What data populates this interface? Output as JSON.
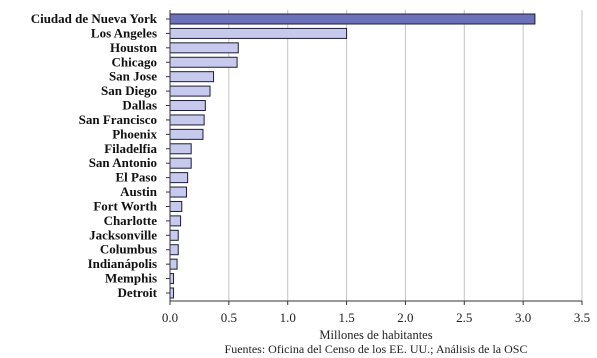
{
  "chart_data": {
    "type": "bar",
    "orientation": "horizontal",
    "categories": [
      "Ciudad de Nueva York",
      "Los Angeles",
      "Houston",
      "Chicago",
      "San Jose",
      "San Diego",
      "Dallas",
      "San Francisco",
      "Phoenix",
      "Filadelfia",
      "San Antonio",
      "El Paso",
      "Austin",
      "Fort Worth",
      "Charlotte",
      "Jacksonville",
      "Columbus",
      "Indianápolis",
      "Memphis",
      "Detroit"
    ],
    "values": [
      3.1,
      1.5,
      0.58,
      0.57,
      0.37,
      0.34,
      0.3,
      0.29,
      0.28,
      0.18,
      0.18,
      0.15,
      0.14,
      0.1,
      0.09,
      0.07,
      0.07,
      0.06,
      0.03,
      0.03
    ],
    "xlabel": "Millones de habitantes",
    "xlim": [
      0,
      3.5
    ],
    "xticks": [
      "0.0",
      "0.5",
      "1.0",
      "1.5",
      "2.0",
      "2.5",
      "3.0",
      "3.5"
    ],
    "grid": true,
    "source": "Fuentes: Oficina del Censo de los EE. UU.; Análisis de la OSC",
    "colors": {
      "highlight_bar": "#6d71b9",
      "bar": "#c7caed",
      "bar_outline": "#1c1c38",
      "grid": "#c4c4c4",
      "axis": "#333333"
    }
  }
}
